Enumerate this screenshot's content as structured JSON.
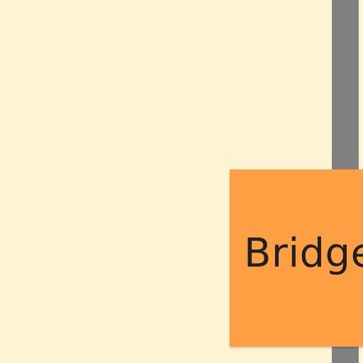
{
  "board": {
    "background_color": "#FFF4D1",
    "connector_color": "#808080"
  },
  "sticky_note": {
    "text": "Bridge",
    "color": "#FF9F43",
    "text_color": "#1F1F1F"
  }
}
